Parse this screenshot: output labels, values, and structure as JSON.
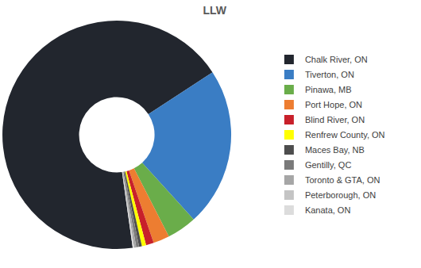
{
  "chart_data": {
    "type": "pie",
    "title": "LLW",
    "categories": [
      "Chalk River, ON",
      "Tiverton, ON",
      "Pinawa, MB",
      "Port Hope, ON",
      "Blind River, ON",
      "Renfrew County, ON",
      "Maces Bay, NB",
      "Gentilly, QC",
      "Toronto & GTA, ON",
      "Peterborough, ON",
      "Kanata, ON"
    ],
    "values": [
      68,
      22.5,
      4.2,
      2.3,
      1.1,
      0.6,
      0.4,
      0.4,
      0.3,
      0.1,
      0.1
    ],
    "colors": [
      "#22262e",
      "#3a7dc4",
      "#6aad4a",
      "#ed7d31",
      "#c8202a",
      "#ffff00",
      "#4d4d4d",
      "#7a7a7a",
      "#a6a6a6",
      "#c4c4c4",
      "#dcdcdc"
    ],
    "legend": "right",
    "data_labels": false
  }
}
